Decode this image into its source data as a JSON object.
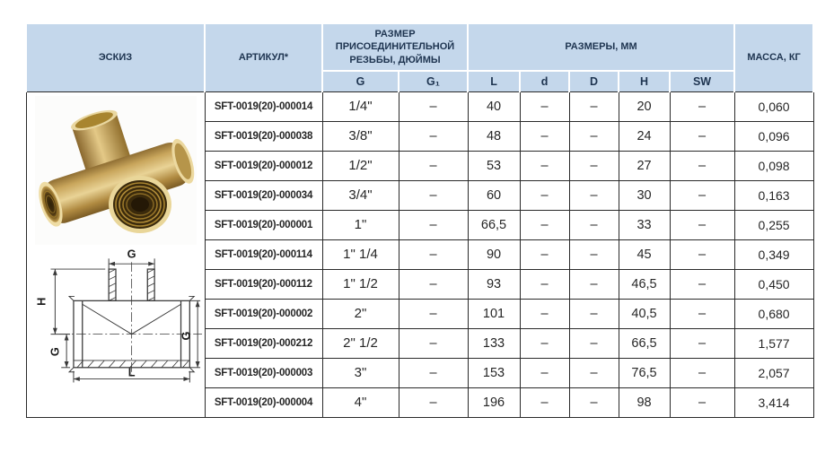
{
  "table": {
    "header": {
      "sketch": "ЭСКИЗ",
      "article": "АРТИКУЛ*",
      "thread_group": "РАЗМЕР ПРИСОЕДИНИТЕЛЬНОЙ РЕЗЬБЫ, ДЮЙМЫ",
      "dimensions_group": "РАЗМЕРЫ, ММ",
      "mass": "МАССА, КГ",
      "subcolumns": [
        "G",
        "G₁",
        "L",
        "d",
        "D",
        "H",
        "SW"
      ]
    },
    "column_keys": [
      "article",
      "g",
      "g1",
      "l",
      "d",
      "d_cap",
      "h",
      "sw",
      "mass"
    ],
    "rows": [
      [
        "SFT-0019(20)-000014",
        "1/4\"",
        "–",
        "40",
        "–",
        "–",
        "20",
        "–",
        "0,060"
      ],
      [
        "SFT-0019(20)-000038",
        "3/8\"",
        "–",
        "48",
        "–",
        "–",
        "24",
        "–",
        "0,096"
      ],
      [
        "SFT-0019(20)-000012",
        "1/2\"",
        "–",
        "53",
        "–",
        "–",
        "27",
        "–",
        "0,098"
      ],
      [
        "SFT-0019(20)-000034",
        "3/4\"",
        "–",
        "60",
        "–",
        "–",
        "30",
        "–",
        "0,163"
      ],
      [
        "SFT-0019(20)-000001",
        "1\"",
        "–",
        "66,5",
        "–",
        "–",
        "33",
        "–",
        "0,255"
      ],
      [
        "SFT-0019(20)-000114",
        "1\" 1/4",
        "–",
        "90",
        "–",
        "–",
        "45",
        "–",
        "0,349"
      ],
      [
        "SFT-0019(20)-000112",
        "1\" 1/2",
        "–",
        "93",
        "–",
        "–",
        "46,5",
        "–",
        "0,450"
      ],
      [
        "SFT-0019(20)-000002",
        "2\"",
        "–",
        "101",
        "–",
        "–",
        "40,5",
        "–",
        "0,680"
      ],
      [
        "SFT-0019(20)-000212",
        "2\" 1/2",
        "–",
        "133",
        "–",
        "–",
        "66,5",
        "–",
        "1,577"
      ],
      [
        "SFT-0019(20)-000003",
        "3\"",
        "–",
        "153",
        "–",
        "–",
        "76,5",
        "–",
        "2,057"
      ],
      [
        "SFT-0019(20)-000004",
        "4\"",
        "–",
        "196",
        "–",
        "–",
        "98",
        "–",
        "3,414"
      ]
    ]
  },
  "sketch": {
    "photo_alt": "brass-tee-fitting-photo",
    "drawing_labels": {
      "top": "G",
      "height": "H",
      "left": "G",
      "right": "G",
      "length": "L"
    }
  },
  "colors": {
    "header_bg": "#c4d7eb",
    "header_text": "#1e3450",
    "grid_border": "#2a2a2a",
    "brass": "#c9a65c"
  }
}
